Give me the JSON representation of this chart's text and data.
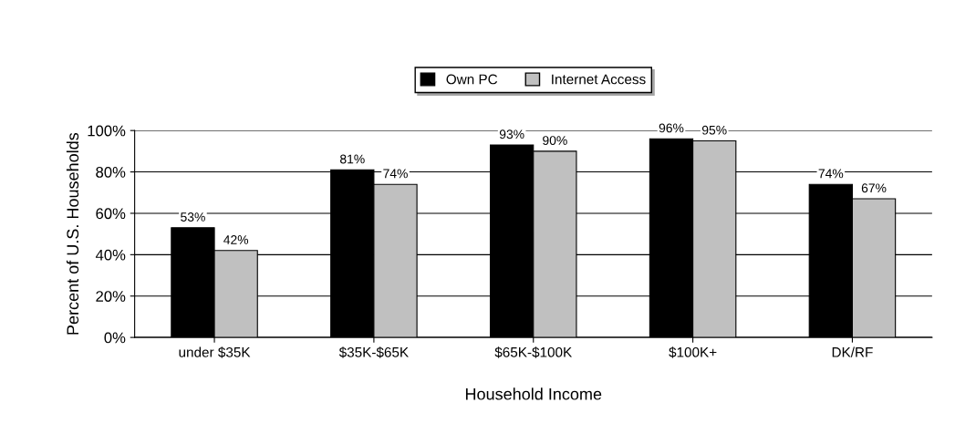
{
  "chart_data": {
    "type": "bar",
    "xlabel": "Household Income",
    "ylabel": "Percent of U.S. Households",
    "categories": [
      "under $35K",
      "$35K-$65K",
      "$65K-$100K",
      "$100K+",
      "DK/RF"
    ],
    "series": [
      {
        "name": "Own PC",
        "color": "#000000",
        "values": [
          53,
          81,
          93,
          96,
          74
        ],
        "value_labels": [
          "53%",
          "81%",
          "93%",
          "96%",
          "74%"
        ]
      },
      {
        "name": "Internet Access",
        "color": "#c0c0c0",
        "values": [
          42,
          74,
          90,
          95,
          67
        ],
        "value_labels": [
          "42%",
          "74%",
          "90%",
          "95%",
          "67%"
        ]
      }
    ],
    "ylim": [
      0,
      100
    ],
    "yticks": [
      {
        "value": 0,
        "label": "0%"
      },
      {
        "value": 20,
        "label": "20%"
      },
      {
        "value": 40,
        "label": "40%"
      },
      {
        "value": 60,
        "label": "60%"
      },
      {
        "value": 80,
        "label": "80%"
      },
      {
        "value": 100,
        "label": "100%"
      }
    ],
    "grid": "y",
    "legend": "top"
  }
}
